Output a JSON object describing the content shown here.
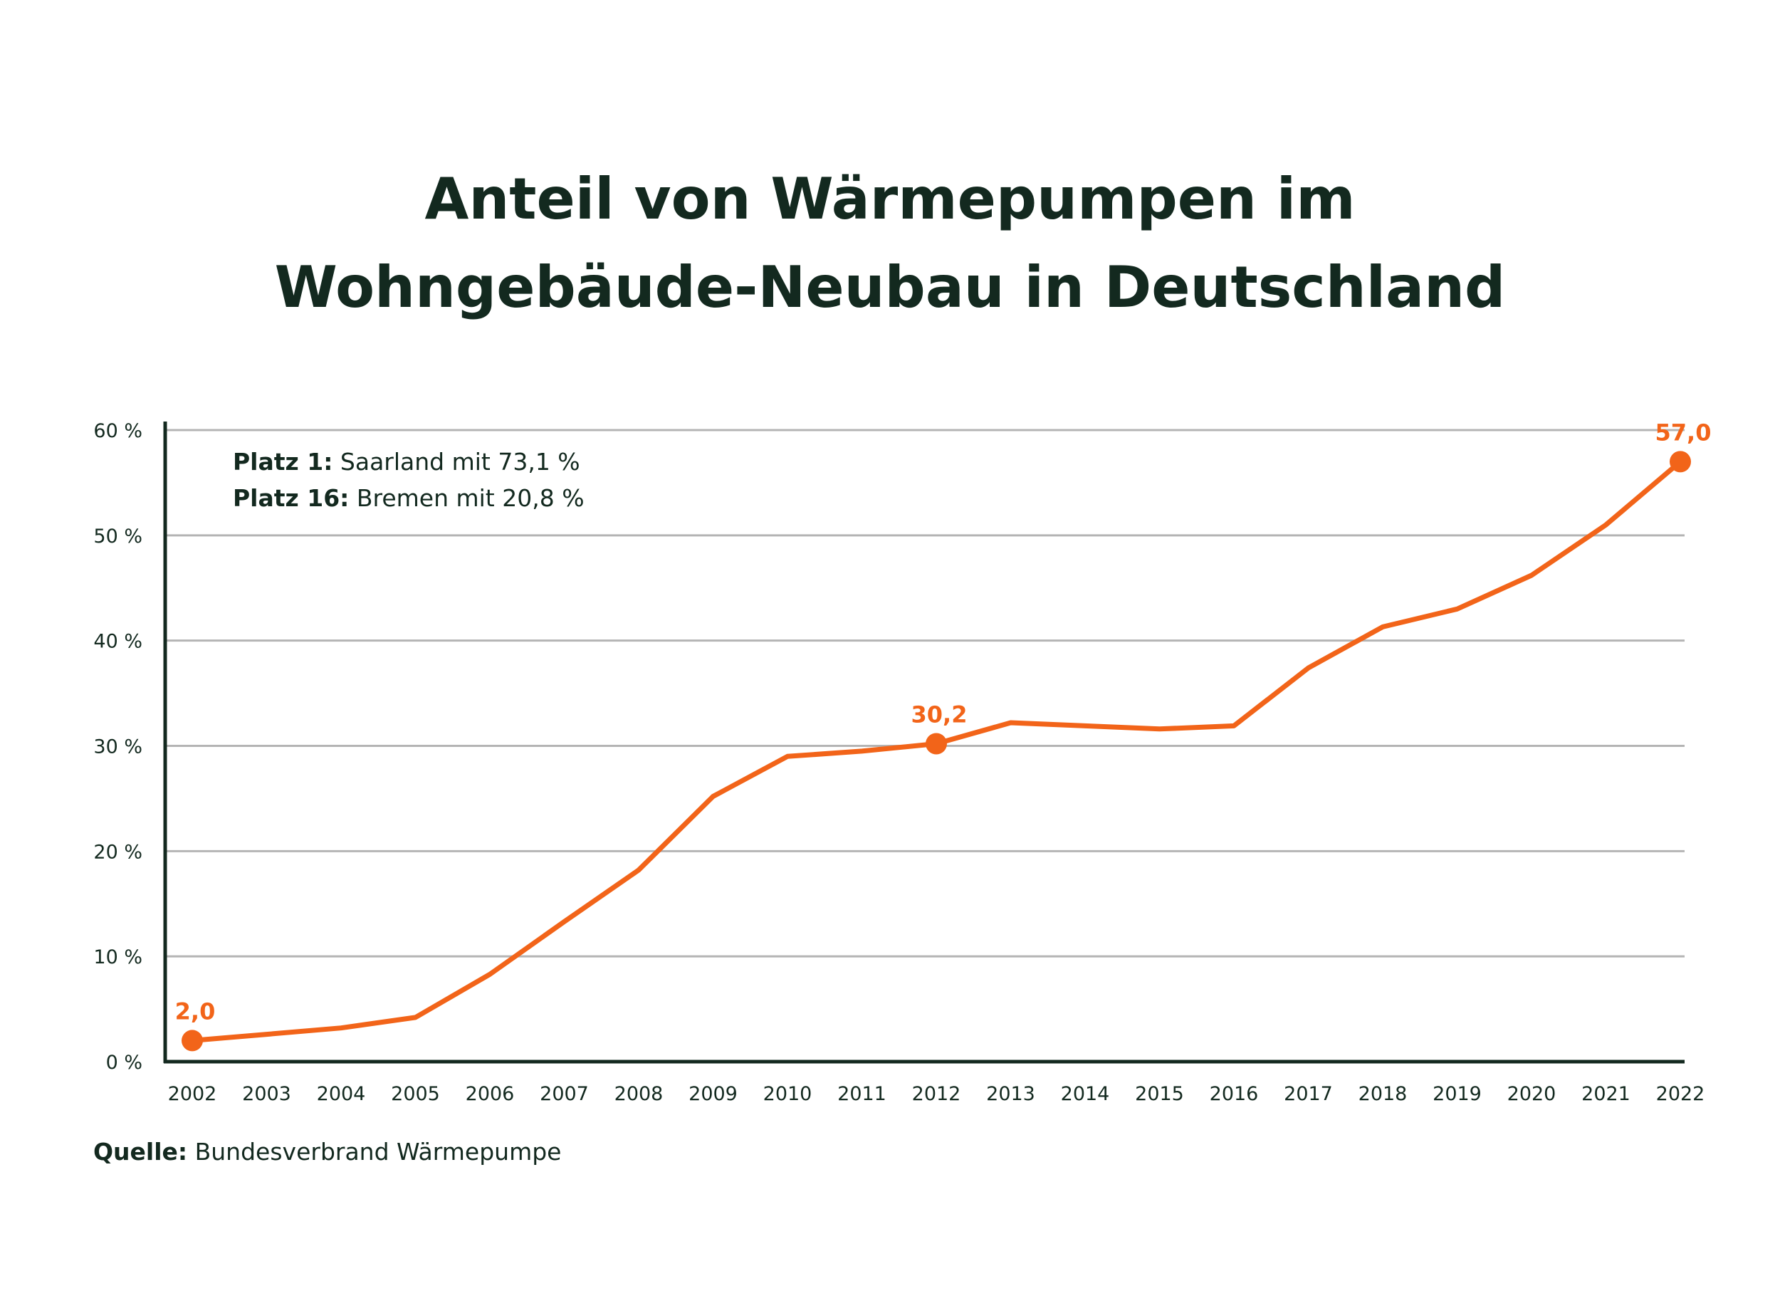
{
  "title_lines": [
    "Anteil von Wärmepumpen im",
    "Wohngebäude-Neubau in Deutschland"
  ],
  "annotations": [
    {
      "bold": "Platz 1:",
      "text": " Saarland mit 73,1 %"
    },
    {
      "bold": "Platz 16:",
      "text": " Bremen mit 20,8 %"
    }
  ],
  "source": {
    "label": "Quelle:",
    "text": " Bundesverbrand Wärmepumpe"
  },
  "colors": {
    "line": "#f26419",
    "text": "#13291f",
    "grid": "#b4b4b4",
    "axis": "#13291f"
  },
  "chart_data": {
    "type": "line",
    "title": "Anteil von Wärmepumpen im Wohngebäude-Neubau in Deutschland",
    "xlabel": "",
    "ylabel": "",
    "ylim": [
      0,
      60
    ],
    "yticks": [
      0,
      10,
      20,
      30,
      40,
      50,
      60
    ],
    "ytick_labels": [
      "0 %",
      "10 %",
      "20 %",
      "30 %",
      "40 %",
      "50 %",
      "60 %"
    ],
    "grid": true,
    "x": [
      "2002",
      "2003",
      "2004",
      "2005",
      "2006",
      "2007",
      "2008",
      "2009",
      "2010",
      "2011",
      "2012",
      "2013",
      "2014",
      "2015",
      "2016",
      "2017",
      "2018",
      "2019",
      "2020",
      "2021",
      "2022"
    ],
    "series": [
      {
        "values": [
          2.0,
          2.6,
          3.2,
          4.2,
          8.3,
          13.3,
          18.2,
          25.2,
          29.0,
          29.5,
          30.2,
          32.2,
          31.9,
          31.6,
          31.9,
          37.4,
          41.3,
          43.0,
          46.2,
          51.0,
          57.0
        ]
      }
    ],
    "highlighted_points": [
      {
        "x": "2002",
        "y": 2.0,
        "label": "2,0"
      },
      {
        "x": "2012",
        "y": 30.2,
        "label": "30,2"
      },
      {
        "x": "2022",
        "y": 57.0,
        "label": "57,0"
      }
    ]
  }
}
